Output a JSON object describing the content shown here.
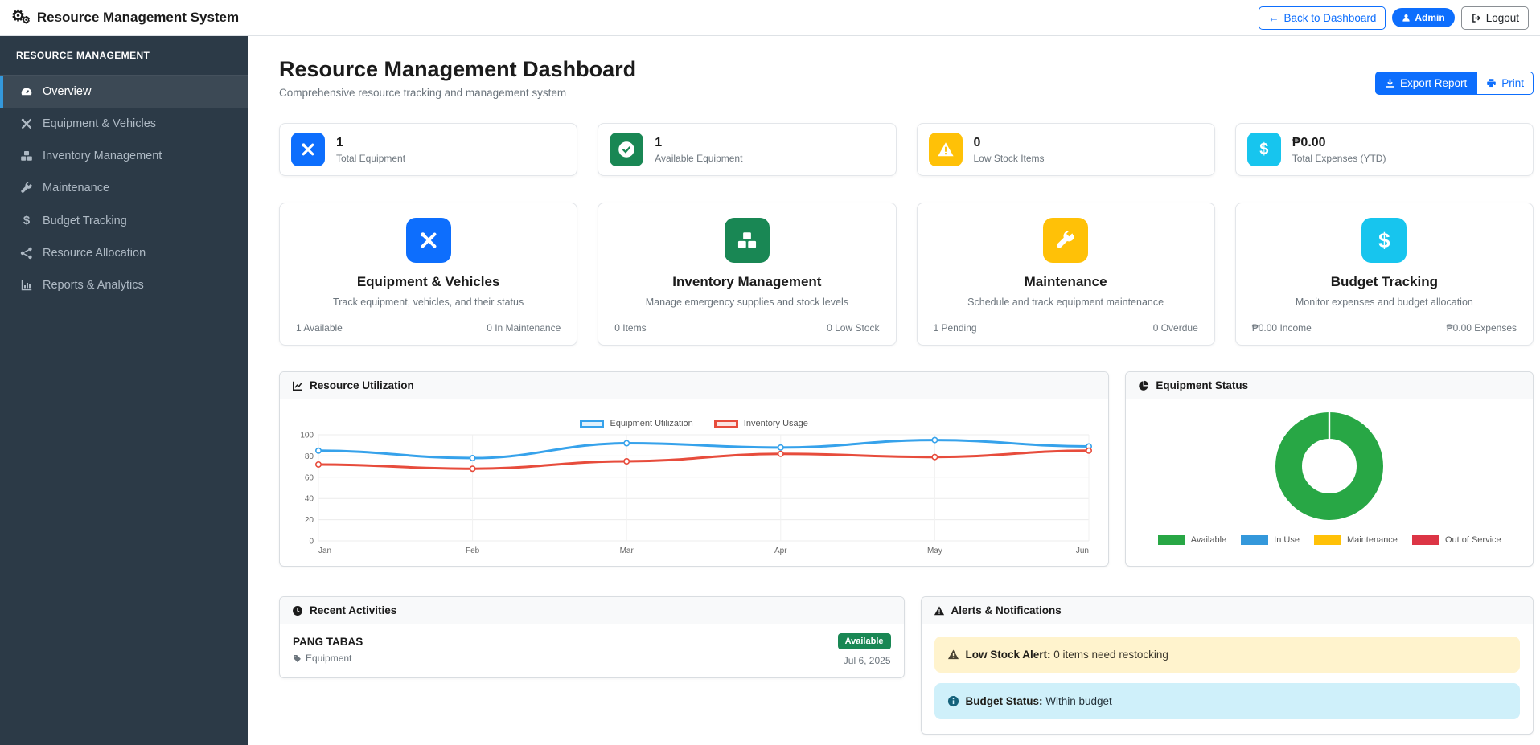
{
  "navbar": {
    "title": "Resource Management System",
    "back_button": "Back to Dashboard",
    "admin_badge": "Admin",
    "logout_button": "Logout"
  },
  "sidebar": {
    "header": "RESOURCE MANAGEMENT",
    "items": [
      {
        "label": "Overview",
        "icon": "gauge-icon",
        "active": true
      },
      {
        "label": "Equipment & Vehicles",
        "icon": "tools-icon",
        "active": false
      },
      {
        "label": "Inventory Management",
        "icon": "cubes-icon",
        "active": false
      },
      {
        "label": "Maintenance",
        "icon": "wrench-icon",
        "active": false
      },
      {
        "label": "Budget Tracking",
        "icon": "dollar-icon",
        "active": false
      },
      {
        "label": "Resource Allocation",
        "icon": "share-icon",
        "active": false
      },
      {
        "label": "Reports & Analytics",
        "icon": "chart-bar-icon",
        "active": false
      }
    ]
  },
  "page": {
    "title": "Resource Management Dashboard",
    "subtitle": "Comprehensive resource tracking and management system",
    "export_button": "Export Report",
    "print_button": "Print"
  },
  "stats": [
    {
      "value": "1",
      "label": "Total Equipment",
      "color": "#0d6efd",
      "icon": "tools-icon"
    },
    {
      "value": "1",
      "label": "Available Equipment",
      "color": "#198754",
      "icon": "check-circle-icon"
    },
    {
      "value": "0",
      "label": "Low Stock Items",
      "color": "#ffc107",
      "icon": "warning-icon"
    },
    {
      "value": "₱0.00",
      "label": "Total Expenses (YTD)",
      "color": "#17c5ee",
      "icon": "dollar-icon"
    }
  ],
  "features": [
    {
      "title": "Equipment & Vehicles",
      "description": "Track equipment, vehicles, and their status",
      "footer_left": "1 Available",
      "footer_right": "0 In Maintenance",
      "color": "#0d6efd",
      "icon": "tools-icon"
    },
    {
      "title": "Inventory Management",
      "description": "Manage emergency supplies and stock levels",
      "footer_left": "0 Items",
      "footer_right": "0 Low Stock",
      "color": "#198754",
      "icon": "cubes-icon"
    },
    {
      "title": "Maintenance",
      "description": "Schedule and track equipment maintenance",
      "footer_left": "1 Pending",
      "footer_right": "0 Overdue",
      "color": "#ffc107",
      "icon": "wrench-icon"
    },
    {
      "title": "Budget Tracking",
      "description": "Monitor expenses and budget allocation",
      "footer_left": "₱0.00 Income",
      "footer_right": "₱0.00 Expenses",
      "color": "#17c5ee",
      "icon": "dollar-icon"
    }
  ],
  "chart_data": [
    {
      "type": "line",
      "title": "Resource Utilization",
      "x": [
        "Jan",
        "Feb",
        "Mar",
        "Apr",
        "May",
        "Jun"
      ],
      "series": [
        {
          "name": "Equipment Utilization",
          "color": "#36a2eb",
          "values": [
            85,
            78,
            92,
            88,
            95,
            89
          ]
        },
        {
          "name": "Inventory Usage",
          "color": "#e74c3c",
          "values": [
            72,
            68,
            75,
            82,
            79,
            85
          ]
        }
      ],
      "ylim": [
        0,
        100
      ],
      "yticks": [
        0,
        20,
        40,
        60,
        80,
        100
      ],
      "grid": true,
      "legend_position": "top"
    },
    {
      "type": "pie",
      "title": "Equipment Status",
      "labels": [
        "Available",
        "In Use",
        "Maintenance",
        "Out of Service"
      ],
      "values": [
        1,
        0,
        0,
        0
      ],
      "colors": [
        "#28a745",
        "#3498db",
        "#ffc107",
        "#dc3545"
      ],
      "doughnut": true,
      "legend_position": "bottom"
    }
  ],
  "recent": {
    "title": "Recent Activities",
    "items": [
      {
        "name": "PANG TABAS",
        "category": "Equipment",
        "badge": "Available",
        "badge_color": "#198754",
        "date": "Jul 6, 2025"
      }
    ]
  },
  "alerts": {
    "title": "Alerts & Notifications",
    "items": [
      {
        "type": "warning",
        "bold": "Low Stock Alert:",
        "text": " 0 items need restocking"
      },
      {
        "type": "info",
        "bold": "Budget Status:",
        "text": " Within budget"
      }
    ]
  }
}
